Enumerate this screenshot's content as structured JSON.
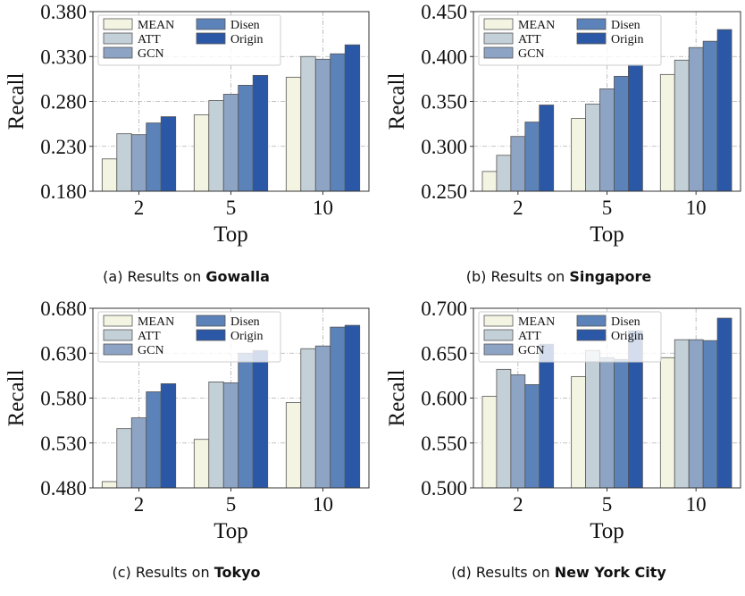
{
  "series_names": [
    "MEAN",
    "ATT",
    "GCN",
    "Disen",
    "Origin"
  ],
  "series_colors": [
    "#f4f4e2",
    "#c4d0d8",
    "#8ea4c4",
    "#5b82b9",
    "#2b58a6"
  ],
  "bar_edge_color": "#555555",
  "captions": [
    {
      "prefix": "(a) Results on ",
      "dataset": "Gowalla"
    },
    {
      "prefix": "(b) Results on ",
      "dataset": "Singapore"
    },
    {
      "prefix": "(c) Results on ",
      "dataset": "Tokyo"
    },
    {
      "prefix": "(d) Results on ",
      "dataset": "New York City"
    }
  ],
  "chart_data": [
    {
      "type": "bar",
      "xlabel": "Top",
      "ylabel": "Recall",
      "categories": [
        "2",
        "5",
        "10"
      ],
      "ylim": [
        0.18,
        0.38
      ],
      "yticks": [
        "0.180",
        "0.230",
        "0.280",
        "0.330",
        "0.380"
      ],
      "grid": true,
      "legend": "top-left",
      "series": [
        {
          "name": "MEAN",
          "values": [
            0.216,
            0.265,
            0.307
          ]
        },
        {
          "name": "ATT",
          "values": [
            0.244,
            0.281,
            0.33
          ]
        },
        {
          "name": "GCN",
          "values": [
            0.243,
            0.288,
            0.327
          ]
        },
        {
          "name": "Disen",
          "values": [
            0.256,
            0.298,
            0.333
          ]
        },
        {
          "name": "Origin",
          "values": [
            0.263,
            0.309,
            0.343
          ]
        }
      ]
    },
    {
      "type": "bar",
      "xlabel": "Top",
      "ylabel": "Recall",
      "categories": [
        "2",
        "5",
        "10"
      ],
      "ylim": [
        0.25,
        0.45
      ],
      "yticks": [
        "0.250",
        "0.300",
        "0.350",
        "0.400",
        "0.450"
      ],
      "grid": true,
      "legend": "top-left",
      "series": [
        {
          "name": "MEAN",
          "values": [
            0.272,
            0.331,
            0.38
          ]
        },
        {
          "name": "ATT",
          "values": [
            0.29,
            0.347,
            0.396
          ]
        },
        {
          "name": "GCN",
          "values": [
            0.311,
            0.364,
            0.41
          ]
        },
        {
          "name": "Disen",
          "values": [
            0.327,
            0.378,
            0.417
          ]
        },
        {
          "name": "Origin",
          "values": [
            0.346,
            0.391,
            0.43
          ]
        }
      ]
    },
    {
      "type": "bar",
      "xlabel": "Top",
      "ylabel": "Recall",
      "categories": [
        "2",
        "5",
        "10"
      ],
      "ylim": [
        0.48,
        0.68
      ],
      "yticks": [
        "0.480",
        "0.530",
        "0.580",
        "0.630",
        "0.680"
      ],
      "grid": true,
      "legend": "top-left",
      "series": [
        {
          "name": "MEAN",
          "values": [
            0.487,
            0.534,
            0.575
          ]
        },
        {
          "name": "ATT",
          "values": [
            0.546,
            0.598,
            0.635
          ]
        },
        {
          "name": "GCN",
          "values": [
            0.558,
            0.597,
            0.638
          ]
        },
        {
          "name": "Disen",
          "values": [
            0.587,
            0.63,
            0.659
          ]
        },
        {
          "name": "Origin",
          "values": [
            0.596,
            0.633,
            0.661
          ]
        }
      ]
    },
    {
      "type": "bar",
      "xlabel": "Top",
      "ylabel": "Recall",
      "categories": [
        "2",
        "5",
        "10"
      ],
      "ylim": [
        0.5,
        0.7
      ],
      "yticks": [
        "0.500",
        "0.550",
        "0.600",
        "0.650",
        "0.700"
      ],
      "grid": true,
      "legend": "top-left",
      "series": [
        {
          "name": "MEAN",
          "values": [
            0.602,
            0.624,
            0.645
          ]
        },
        {
          "name": "ATT",
          "values": [
            0.632,
            0.653,
            0.665
          ]
        },
        {
          "name": "GCN",
          "values": [
            0.626,
            0.645,
            0.665
          ]
        },
        {
          "name": "Disen",
          "values": [
            0.615,
            0.643,
            0.664
          ]
        },
        {
          "name": "Origin",
          "values": [
            0.66,
            0.675,
            0.689
          ]
        }
      ]
    }
  ]
}
